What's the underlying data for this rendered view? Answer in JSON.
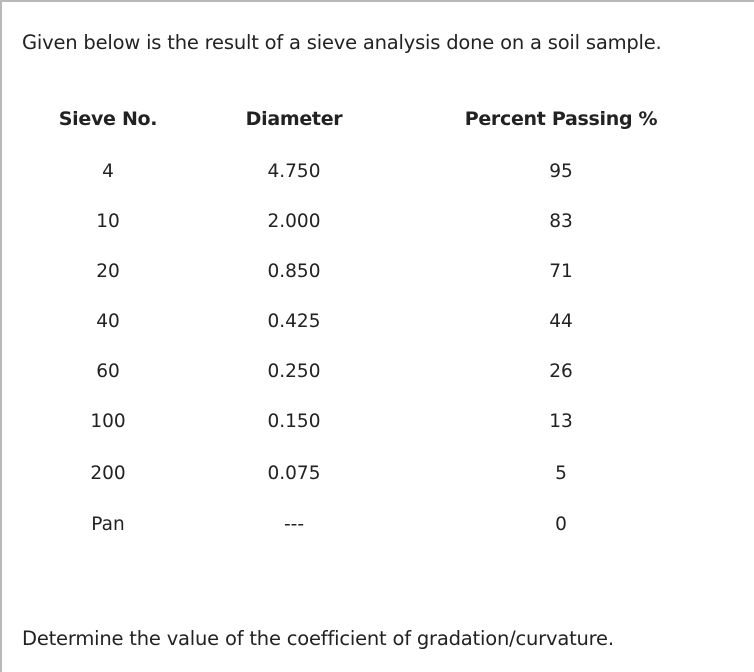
{
  "intro": "Given below is the result of a sieve analysis done on a soil sample.",
  "table": {
    "headers": [
      "Sieve No.",
      "Diameter",
      "Percent Passing %"
    ],
    "rows": [
      [
        "4",
        "4.750",
        "95"
      ],
      [
        "10",
        "2.000",
        "83"
      ],
      [
        "20",
        "0.850",
        "71"
      ],
      [
        "40",
        "0.425",
        "44"
      ],
      [
        "60",
        "0.250",
        "26"
      ],
      [
        "100",
        "0.150",
        "13"
      ],
      [
        "200",
        "0.075",
        "5"
      ],
      [
        "Pan",
        "---",
        "0"
      ]
    ]
  },
  "question": "Determine the value of the coefficient of gradation/curvature."
}
